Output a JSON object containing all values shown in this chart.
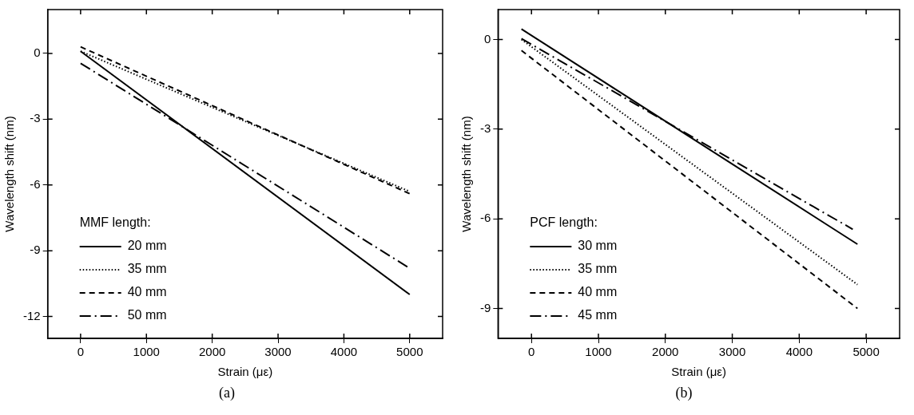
{
  "chart_data": [
    {
      "type": "line",
      "xlabel": "Strain (με)",
      "ylabel": "Wavelength shift (nm)",
      "legend_title": "MMF length:",
      "legend": "bottom left",
      "grid": false,
      "marker": "none",
      "xlim": [
        -500,
        5500
      ],
      "xticks": [
        0,
        1000,
        2000,
        3000,
        4000,
        5000
      ],
      "ylim": [
        -13,
        2
      ],
      "yticks": [
        0,
        -3,
        -6,
        -9,
        -12
      ],
      "annotations": [
        "(a)"
      ],
      "series": [
        {
          "name": "20 mm",
          "color": "#000000",
          "line_style": "solid",
          "x": [
            0,
            5000
          ],
          "values": [
            0.1,
            -11
          ]
        },
        {
          "name": "35 mm",
          "color": "#000000",
          "line_style": "dotted",
          "x": [
            0,
            5000
          ],
          "values": [
            0.1,
            -6.3
          ]
        },
        {
          "name": "40 mm",
          "color": "#000000",
          "line_style": "dashed",
          "x": [
            0,
            5000
          ],
          "values": [
            0.3,
            -6.4
          ]
        },
        {
          "name": "50 mm",
          "color": "#000000",
          "line_style": "dashdot",
          "x": [
            0,
            5000
          ],
          "values": [
            -0.45,
            -9.8
          ]
        }
      ]
    },
    {
      "type": "line",
      "xlabel": "Strain (με)",
      "ylabel": "Wavelength shift (nm)",
      "legend_title": "PCF length:",
      "legend": "bottom left",
      "grid": false,
      "marker": "none",
      "xlim": [
        -500,
        5500
      ],
      "xticks": [
        0,
        1000,
        2000,
        3000,
        4000,
        5000
      ],
      "ylim": [
        -10,
        1
      ],
      "yticks": [
        0,
        -3,
        -6,
        -9
      ],
      "annotations": [
        "(b)"
      ],
      "series": [
        {
          "name": "30 mm",
          "color": "#000000",
          "line_style": "solid",
          "x": [
            -150,
            4870
          ],
          "values": [
            0.35,
            -6.85
          ]
        },
        {
          "name": "35 mm",
          "color": "#000000",
          "line_style": "dotted",
          "x": [
            -150,
            4870
          ],
          "values": [
            0,
            -8.2
          ]
        },
        {
          "name": "40 mm",
          "color": "#000000",
          "line_style": "dashed",
          "x": [
            -150,
            4870
          ],
          "values": [
            -0.37,
            -9
          ]
        },
        {
          "name": "45 mm",
          "color": "#000000",
          "line_style": "dashdot",
          "x": [
            -150,
            4800
          ],
          "values": [
            0.03,
            -6.35
          ]
        }
      ]
    }
  ]
}
